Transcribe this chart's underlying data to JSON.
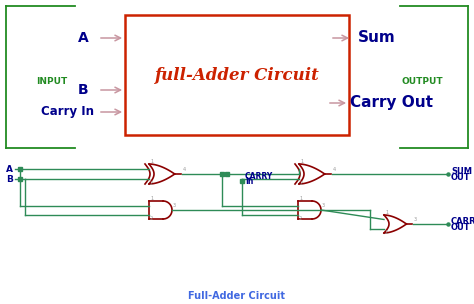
{
  "bg_color": "#ffffff",
  "green_color": "#228B22",
  "box_color": "#CC2200",
  "blue_color": "#00008B",
  "pink_color": "#C896A0",
  "wire_color": "#2E8B57",
  "caption_color": "#4169E1",
  "gate_color": "#8B0000",
  "top_title": "full-Adder Circuit",
  "bottom_caption": "Full-Adder Circuit",
  "input_label": "INPUT",
  "output_label": "OUTPUT",
  "figsize": [
    4.74,
    3.04
  ],
  "dpi": 100
}
